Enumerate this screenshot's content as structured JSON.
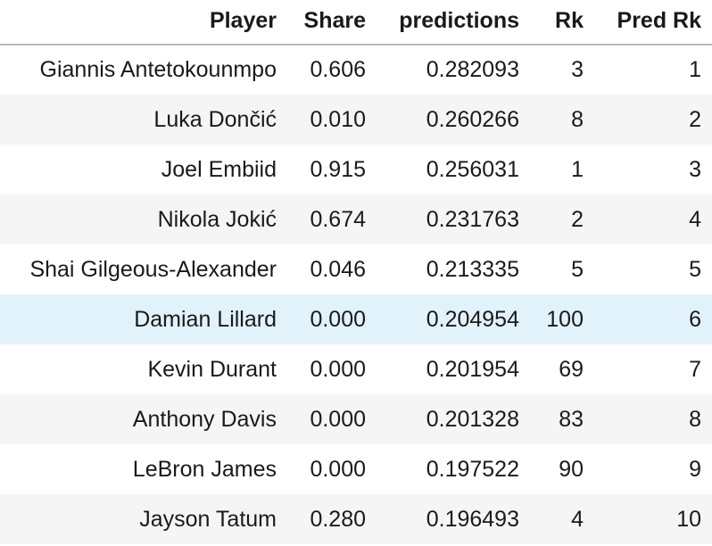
{
  "table": {
    "headers": [
      "Player",
      "Share",
      "predictions",
      "Rk",
      "Pred Rk"
    ],
    "rows": [
      {
        "player": "Giannis Antetokounmpo",
        "share": "0.606",
        "prediction": "0.282093",
        "rk": "3",
        "pred_rk": "1"
      },
      {
        "player": "Luka Dončić",
        "share": "0.010",
        "prediction": "0.260266",
        "rk": "8",
        "pred_rk": "2"
      },
      {
        "player": "Joel Embiid",
        "share": "0.915",
        "prediction": "0.256031",
        "rk": "1",
        "pred_rk": "3"
      },
      {
        "player": "Nikola Jokić",
        "share": "0.674",
        "prediction": "0.231763",
        "rk": "2",
        "pred_rk": "4"
      },
      {
        "player": "Shai Gilgeous-Alexander",
        "share": "0.046",
        "prediction": "0.213335",
        "rk": "5",
        "pred_rk": "5"
      },
      {
        "player": "Damian Lillard",
        "share": "0.000",
        "prediction": "0.204954",
        "rk": "100",
        "pred_rk": "6"
      },
      {
        "player": "Kevin Durant",
        "share": "0.000",
        "prediction": "0.201954",
        "rk": "69",
        "pred_rk": "7"
      },
      {
        "player": "Anthony Davis",
        "share": "0.000",
        "prediction": "0.201328",
        "rk": "83",
        "pred_rk": "8"
      },
      {
        "player": "LeBron James",
        "share": "0.000",
        "prediction": "0.197522",
        "rk": "90",
        "pred_rk": "9"
      },
      {
        "player": "Jayson Tatum",
        "share": "0.280",
        "prediction": "0.196493",
        "rk": "4",
        "pred_rk": "10"
      }
    ]
  },
  "colors": {
    "row_even": "#f5f5f5",
    "row_odd": "#ffffff",
    "row_hover": "#e1f2fb",
    "header_rule": "#b9b9b9"
  }
}
